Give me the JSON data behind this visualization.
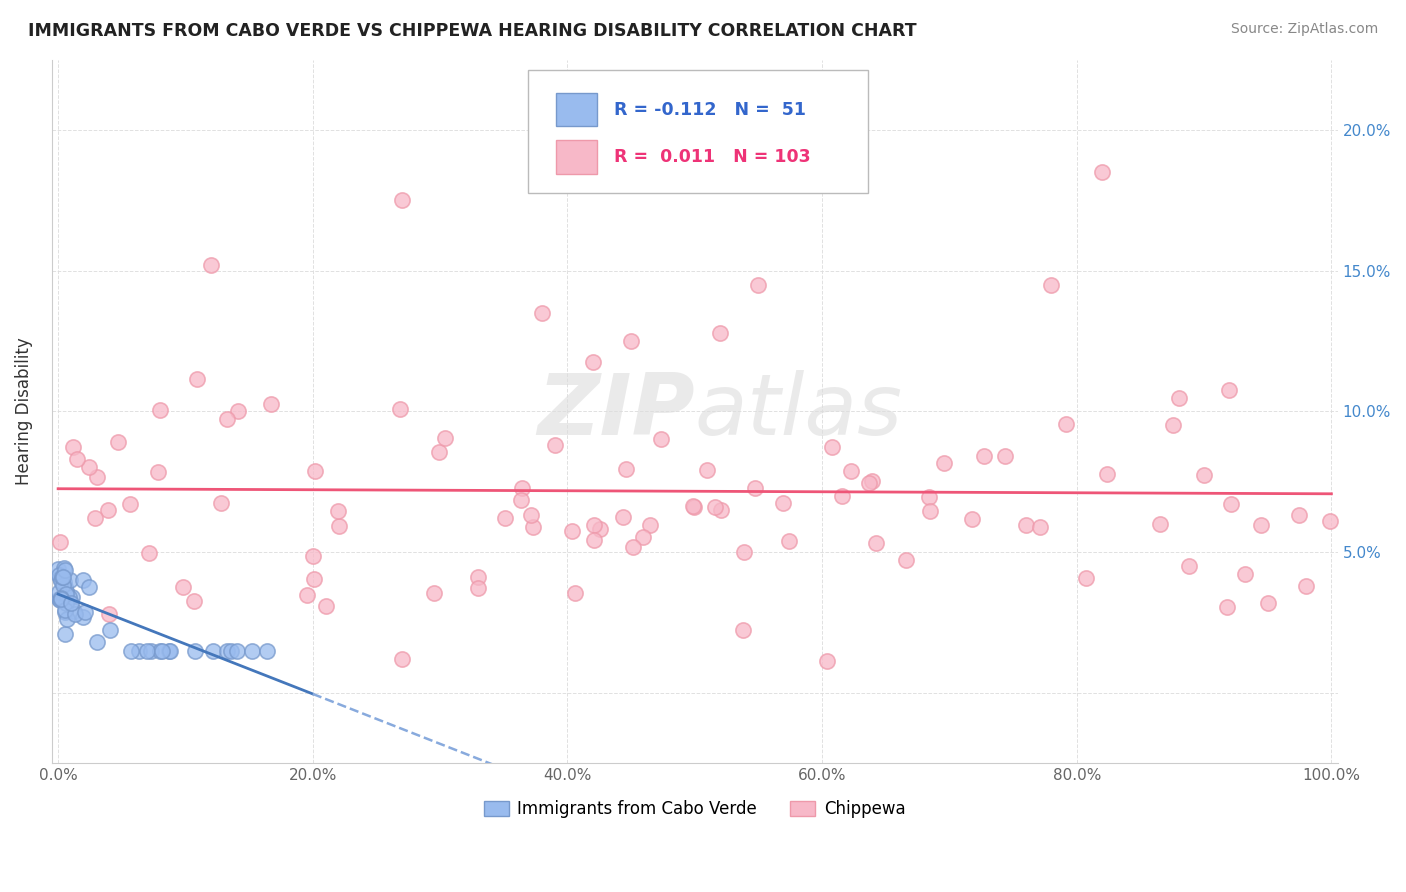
{
  "title": "IMMIGRANTS FROM CABO VERDE VS CHIPPEWA HEARING DISABILITY CORRELATION CHART",
  "source": "Source: ZipAtlas.com",
  "ylabel": "Hearing Disability",
  "xlim": [
    -0.005,
    1.005
  ],
  "ylim": [
    -0.025,
    0.225
  ],
  "xtick_vals": [
    0.0,
    0.2,
    0.4,
    0.6,
    0.8,
    1.0
  ],
  "xtick_labels": [
    "0.0%",
    "20.0%",
    "40.0%",
    "60.0%",
    "80.0%",
    "100.0%"
  ],
  "ytick_vals": [
    0.0,
    0.05,
    0.1,
    0.15,
    0.2
  ],
  "ytick_labels_left": [
    "",
    "",
    "",
    "",
    ""
  ],
  "ytick_labels_right": [
    "",
    "5.0%",
    "10.0%",
    "15.0%",
    "20.0%"
  ],
  "background_color": "#ffffff",
  "grid_color": "#dddddd",
  "cabo_verde_color": "#99bbee",
  "cabo_verde_edge": "#7799cc",
  "chippewa_color": "#f7b8c8",
  "chippewa_edge": "#ee99aa",
  "cabo_verde_line_solid_color": "#4477bb",
  "cabo_verde_line_dash_color": "#88aadd",
  "chippewa_line_color": "#ee5577",
  "legend_cabo_R": "-0.112",
  "legend_cabo_N": "51",
  "legend_chip_R": "0.011",
  "legend_chip_N": "103",
  "watermark_top": "ZIP",
  "watermark_bottom": "atlas",
  "legend_cabo_color": "#3366cc",
  "legend_chip_color": "#ee3377"
}
